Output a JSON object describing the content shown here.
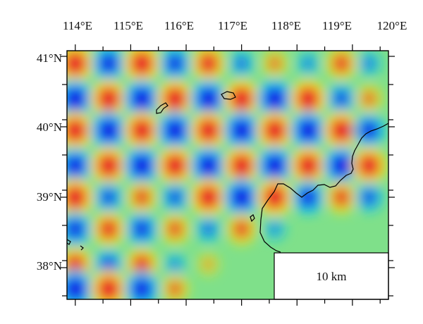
{
  "map": {
    "lon_ticks": [
      "114°E",
      "115°E",
      "116°E",
      "117°E",
      "118°E",
      "119°E",
      "120°E"
    ],
    "lat_ticks": [
      "41°N",
      "40°N",
      "39°N",
      "38°N"
    ],
    "lon_range": [
      113.85,
      119.65
    ],
    "lat_range": [
      37.55,
      41.08
    ],
    "scale_label": "10 km",
    "colors": {
      "background": "#7fe08a",
      "positive": "#e8152a",
      "negative": "#1418e6",
      "coastline": "#000000",
      "frame": "#000000"
    },
    "anomaly_grid": {
      "note_lon": "anomaly centers in degrees longitude",
      "lons": [
        114.0,
        114.6,
        115.2,
        115.8,
        116.4,
        117.0,
        117.6,
        118.2,
        118.8,
        119.3
      ],
      "lats": [
        40.9,
        40.4,
        39.95,
        39.45,
        39.0,
        38.55,
        38.05,
        37.7
      ],
      "sign_pattern_start": "positive",
      "amplitude_rows": [
        [
          1.0,
          -0.85,
          1.0,
          -0.75,
          0.85,
          -0.4,
          0.4,
          -0.25,
          0.7,
          -0.3
        ],
        [
          -1.0,
          1.0,
          -1.0,
          1.0,
          -1.0,
          1.0,
          -1.0,
          1.0,
          -0.6,
          0.45
        ],
        [
          1.0,
          -1.0,
          1.0,
          -1.0,
          1.0,
          -1.0,
          1.0,
          -1.0,
          1.0,
          -0.8
        ],
        [
          -0.9,
          1.0,
          -1.0,
          1.0,
          -1.0,
          1.0,
          -1.0,
          1.0,
          -1.0,
          0.95
        ],
        [
          1.0,
          -0.6,
          0.65,
          -0.55,
          1.0,
          -1.0,
          1.0,
          -0.8,
          0.7,
          -0.55
        ],
        [
          -0.8,
          0.8,
          -0.75,
          0.6,
          -0.4,
          0.65,
          -0.2,
          0.0,
          0.0,
          0.0
        ],
        [
          0.8,
          -0.6,
          0.75,
          -0.2,
          0.15,
          0.0,
          0.0,
          0.0,
          0.0,
          0.0
        ],
        [
          -1.0,
          1.0,
          -0.9,
          0.5,
          0.0,
          0.0,
          0.0,
          0.0,
          0.0,
          0.0
        ]
      ]
    }
  }
}
